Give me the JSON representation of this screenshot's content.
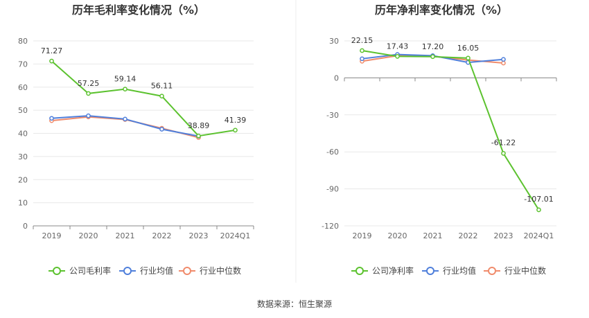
{
  "source_text": "数据来源：恒生聚源",
  "chart_data": [
    {
      "type": "line",
      "title": "历年毛利率变化情况（%）",
      "categories": [
        "2019",
        "2020",
        "2021",
        "2022",
        "2023",
        "2024Q1"
      ],
      "ylim": [
        0,
        80
      ],
      "yticks": [
        0,
        10,
        20,
        30,
        40,
        50,
        60,
        70,
        80
      ],
      "grid": true,
      "legend_position": "bottom",
      "series": [
        {
          "name": "公司毛利率",
          "color": "#5cc22f",
          "labeled": true,
          "values": [
            71.27,
            57.25,
            59.14,
            56.11,
            38.89,
            41.39
          ],
          "labels": [
            "71.27",
            "57.25",
            "59.14",
            "56.11",
            "38.89",
            "41.39"
          ]
        },
        {
          "name": "行业均值",
          "color": "#4f7fdb",
          "labeled": false,
          "values": [
            46.5,
            47.6,
            46.2,
            41.8,
            38.8,
            null
          ]
        },
        {
          "name": "行业中位数",
          "color": "#f08b6b",
          "labeled": false,
          "values": [
            45.5,
            47.1,
            46.0,
            42.2,
            38.2,
            null
          ]
        }
      ]
    },
    {
      "type": "line",
      "title": "历年净利率变化情况（%）",
      "categories": [
        "2019",
        "2020",
        "2021",
        "2022",
        "2023",
        "2024Q1"
      ],
      "ylim": [
        -120,
        30
      ],
      "yticks": [
        -120,
        -90,
        -60,
        -30,
        0,
        30
      ],
      "grid": true,
      "legend_position": "bottom",
      "series": [
        {
          "name": "公司净利率",
          "color": "#5cc22f",
          "labeled": true,
          "values": [
            22.15,
            17.43,
            17.2,
            16.05,
            -61.22,
            -107.01
          ],
          "labels": [
            "22.15",
            "17.43",
            "17.20",
            "16.05",
            "-61.22",
            "-107.01"
          ]
        },
        {
          "name": "行业均值",
          "color": "#4f7fdb",
          "labeled": false,
          "values": [
            15.5,
            19.0,
            18.0,
            12.5,
            15.0,
            null
          ]
        },
        {
          "name": "行业中位数",
          "color": "#f08b6b",
          "labeled": false,
          "values": [
            13.5,
            18.0,
            17.5,
            14.5,
            12.0,
            null
          ]
        }
      ]
    }
  ]
}
